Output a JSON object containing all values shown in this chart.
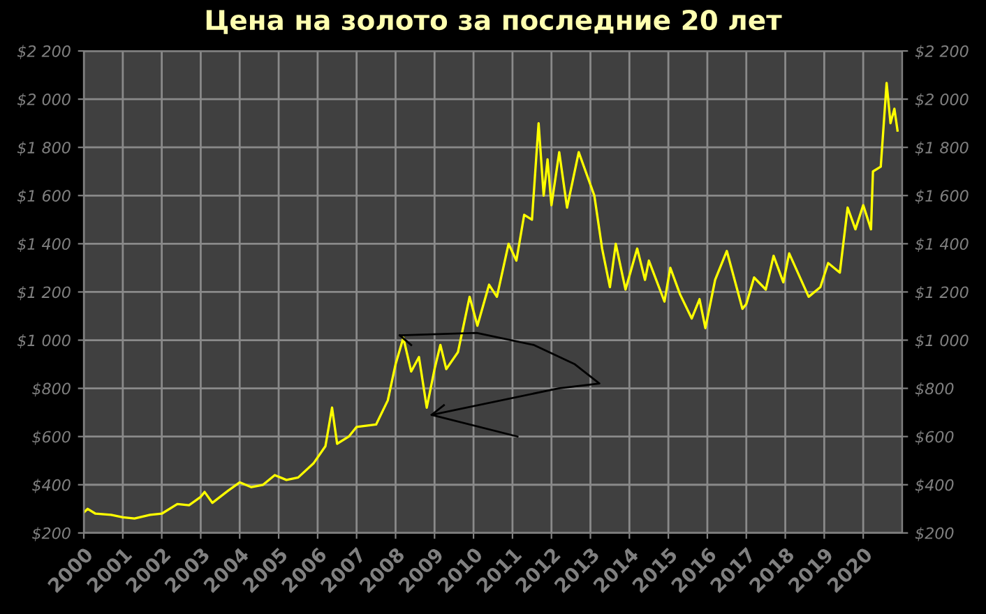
{
  "chart_data": {
    "type": "line",
    "title": "Цена на золото за последние 20 лет",
    "x": [
      2000.0,
      2000.1,
      2000.3,
      2000.7,
      2001.0,
      2001.3,
      2001.7,
      2002.0,
      2002.4,
      2002.7,
      2003.0,
      2003.1,
      2003.3,
      2003.7,
      2004.0,
      2004.3,
      2004.6,
      2004.9,
      2005.2,
      2005.5,
      2005.9,
      2006.2,
      2006.37,
      2006.5,
      2006.8,
      2007.0,
      2007.5,
      2007.8,
      2008.0,
      2008.2,
      2008.4,
      2008.6,
      2008.8,
      2009.0,
      2009.15,
      2009.3,
      2009.6,
      2009.9,
      2010.1,
      2010.4,
      2010.6,
      2010.9,
      2011.1,
      2011.3,
      2011.5,
      2011.67,
      2011.8,
      2011.9,
      2012.0,
      2012.2,
      2012.4,
      2012.7,
      2012.9,
      2013.1,
      2013.3,
      2013.5,
      2013.65,
      2013.9,
      2014.2,
      2014.4,
      2014.5,
      2014.9,
      2015.05,
      2015.3,
      2015.6,
      2015.8,
      2015.95,
      2016.2,
      2016.5,
      2016.9,
      2017.0,
      2017.2,
      2017.5,
      2017.7,
      2017.95,
      2018.1,
      2018.6,
      2018.9,
      2019.1,
      2019.4,
      2019.6,
      2019.8,
      2020.0,
      2020.2,
      2020.25,
      2020.45,
      2020.6,
      2020.7,
      2020.8,
      2020.88
    ],
    "series": [
      {
        "color": "#ffff00",
        "values": [
          285,
          300,
          280,
          275,
          265,
          260,
          275,
          280,
          320,
          315,
          350,
          370,
          325,
          375,
          410,
          390,
          400,
          440,
          420,
          430,
          490,
          560,
          720,
          570,
          600,
          640,
          650,
          750,
          900,
          1010,
          870,
          930,
          720,
          880,
          980,
          880,
          950,
          1180,
          1060,
          1230,
          1180,
          1400,
          1330,
          1520,
          1500,
          1900,
          1600,
          1750,
          1560,
          1780,
          1550,
          1780,
          1690,
          1600,
          1380,
          1220,
          1400,
          1210,
          1380,
          1250,
          1330,
          1160,
          1300,
          1190,
          1090,
          1170,
          1050,
          1250,
          1370,
          1130,
          1150,
          1260,
          1210,
          1350,
          1240,
          1360,
          1180,
          1220,
          1320,
          1280,
          1550,
          1460,
          1560,
          1460,
          1700,
          1720,
          2067,
          1900,
          1960,
          1870
        ]
      }
    ],
    "xlim": [
      2000,
      2021
    ],
    "xticks": [
      2000,
      2001,
      2002,
      2003,
      2004,
      2005,
      2006,
      2007,
      2008,
      2009,
      2010,
      2011,
      2012,
      2013,
      2014,
      2015,
      2016,
      2017,
      2018,
      2019,
      2020
    ],
    "ylim": [
      200,
      2200
    ],
    "yticks": [
      {
        "value": 200,
        "label": "$200"
      },
      {
        "value": 400,
        "label": "$400"
      },
      {
        "value": 600,
        "label": "$600"
      },
      {
        "value": 800,
        "label": "$800"
      },
      {
        "value": 1000,
        "label": "$1 000"
      },
      {
        "value": 1200,
        "label": "$1 200"
      },
      {
        "value": 1400,
        "label": "$1 400"
      },
      {
        "value": 1600,
        "label": "$1 600"
      },
      {
        "value": 1800,
        "label": "$1 800"
      },
      {
        "value": 2000,
        "label": "$2 000"
      },
      {
        "value": 2200,
        "label": "$2 200"
      }
    ],
    "y2lim": [
      200,
      2200
    ],
    "y2ticks": [
      {
        "value": 200,
        "label": "$200"
      },
      {
        "value": 400,
        "label": "$400"
      },
      {
        "value": 600,
        "label": "$600"
      },
      {
        "value": 800,
        "label": "$800"
      },
      {
        "value": 1000,
        "label": "$1 000"
      },
      {
        "value": 1200,
        "label": "$1 200"
      },
      {
        "value": 1400,
        "label": "$1 400"
      },
      {
        "value": 1600,
        "label": "$1 600"
      },
      {
        "value": 1800,
        "label": "$1 800"
      },
      {
        "value": 2000,
        "label": "$2 000"
      },
      {
        "value": 2200,
        "label": "$2 200"
      }
    ],
    "grid": true
  }
}
